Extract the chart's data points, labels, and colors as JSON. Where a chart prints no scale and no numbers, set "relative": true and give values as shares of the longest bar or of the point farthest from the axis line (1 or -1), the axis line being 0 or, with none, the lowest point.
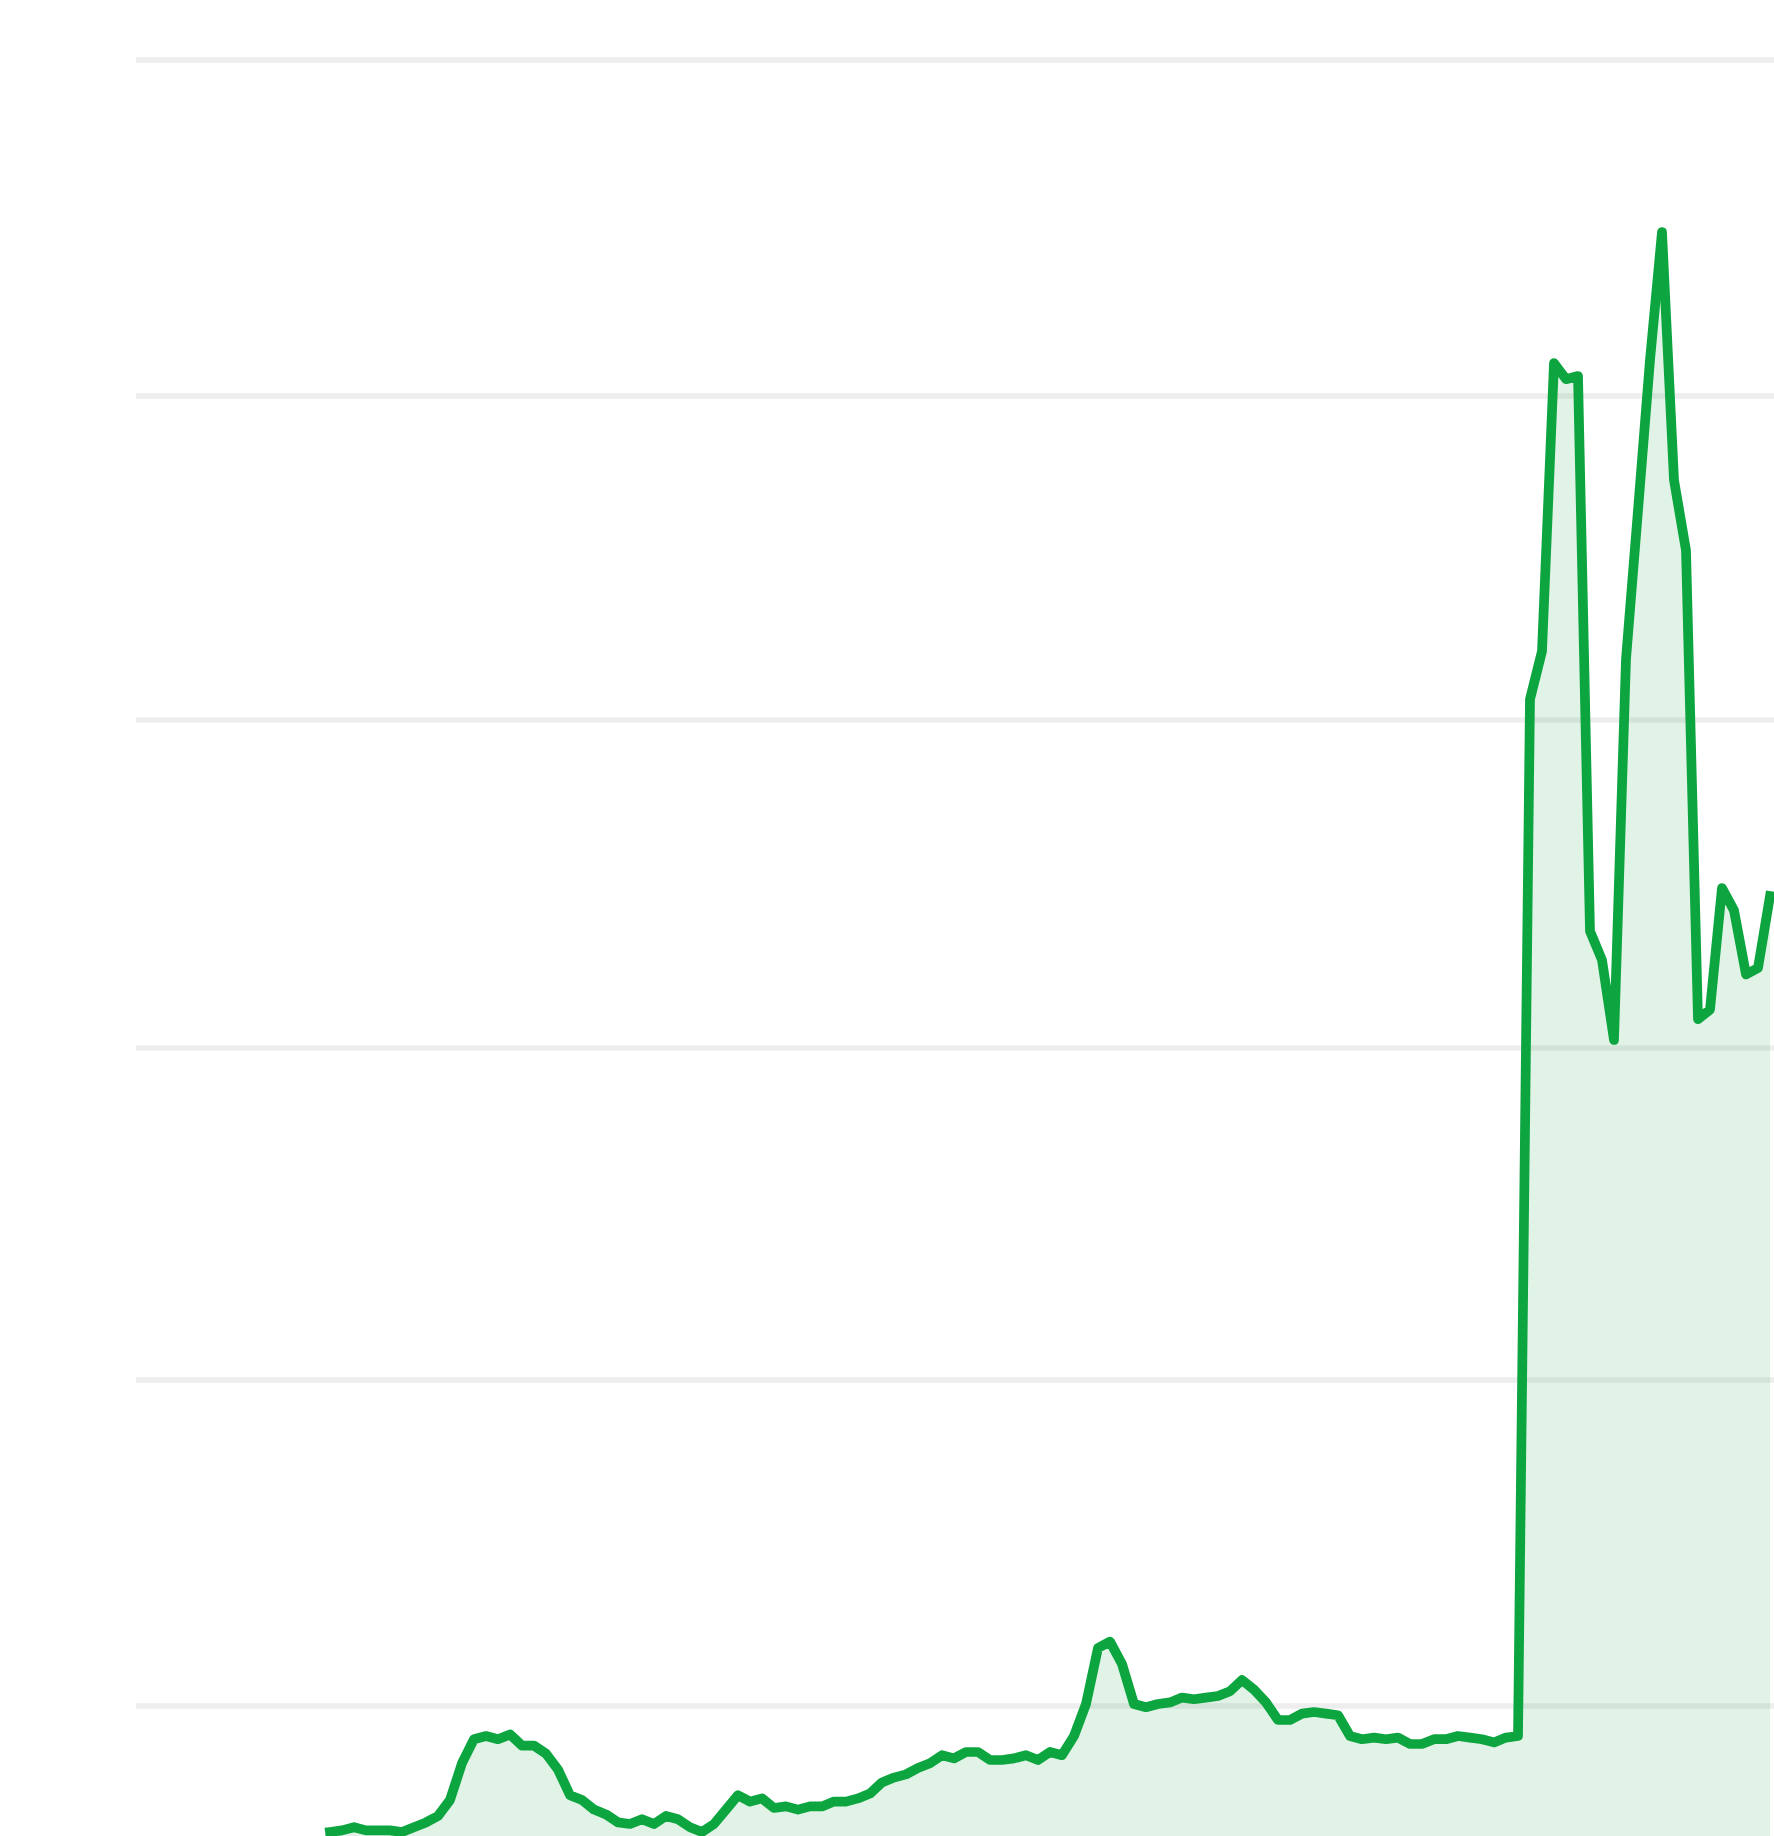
{
  "chart_data": {
    "type": "area",
    "relative": true,
    "grid": "y",
    "marker": "none",
    "line_style": "solid",
    "categories": [
      null,
      null,
      null,
      null,
      null,
      null,
      null,
      null,
      null,
      null,
      null,
      null,
      null,
      null,
      null,
      null,
      null,
      null,
      null,
      null,
      null,
      null,
      null,
      null,
      null,
      null,
      null,
      null,
      null,
      null,
      null,
      null,
      null,
      null,
      null,
      null,
      null,
      null,
      null,
      null,
      null,
      null,
      null,
      null,
      null,
      null,
      null,
      null,
      null,
      null,
      null,
      null,
      null,
      null,
      null,
      null,
      null,
      null,
      null,
      null,
      null,
      null,
      null,
      null,
      null,
      null,
      null,
      null,
      null,
      null,
      null,
      null,
      null,
      null,
      null,
      null,
      null,
      null,
      null,
      null,
      null,
      null,
      null,
      null,
      null,
      null,
      null,
      null,
      null,
      null,
      null,
      null,
      null,
      null,
      null,
      null,
      null,
      null,
      null,
      null,
      null,
      null,
      null,
      null,
      null,
      null,
      null,
      null,
      null,
      null,
      null,
      null,
      null,
      null,
      null,
      null,
      null,
      null,
      null,
      null,
      null
    ],
    "series": [
      {
        "color": "#0ca53f",
        "values": [
          0,
          0.001,
          0.003,
          0.001,
          0.001,
          0.001,
          0,
          0.003,
          0.006,
          0.01,
          0.02,
          0.043,
          0.058,
          0.06,
          0.058,
          0.061,
          0.054,
          0.054,
          0.049,
          0.039,
          0.023,
          0.02,
          0.014,
          0.011,
          0.006,
          0.005,
          0.008,
          0.005,
          0.01,
          0.008,
          0.003,
          0,
          0.005,
          0.014,
          0.023,
          0.019,
          0.021,
          0.015,
          0.016,
          0.014,
          0.016,
          0.016,
          0.019,
          0.019,
          0.021,
          0.024,
          0.031,
          0.034,
          0.036,
          0.04,
          0.043,
          0.048,
          0.046,
          0.05,
          0.05,
          0.045,
          0.045,
          0.046,
          0.048,
          0.045,
          0.05,
          0.048,
          0.06,
          0.08,
          0.115,
          0.119,
          0.105,
          0.08,
          0.078,
          0.08,
          0.081,
          0.084,
          0.083,
          0.084,
          0.085,
          0.088,
          0.095,
          0.089,
          0.081,
          0.07,
          0.07,
          0.074,
          0.075,
          0.074,
          0.073,
          0.06,
          0.058,
          0.059,
          0.058,
          0.059,
          0.055,
          0.055,
          0.058,
          0.058,
          0.06,
          0.059,
          0.058,
          0.056,
          0.059,
          0.06,
          0.708,
          0.738,
          0.918,
          0.908,
          0.91,
          0.563,
          0.545,
          0.495,
          0.733,
          0.826,
          0.92,
          1,
          0.845,
          0.801,
          0.508,
          0.514,
          0.59,
          0.576,
          0.536,
          0.54,
          0.585
        ]
      }
    ]
  }
}
